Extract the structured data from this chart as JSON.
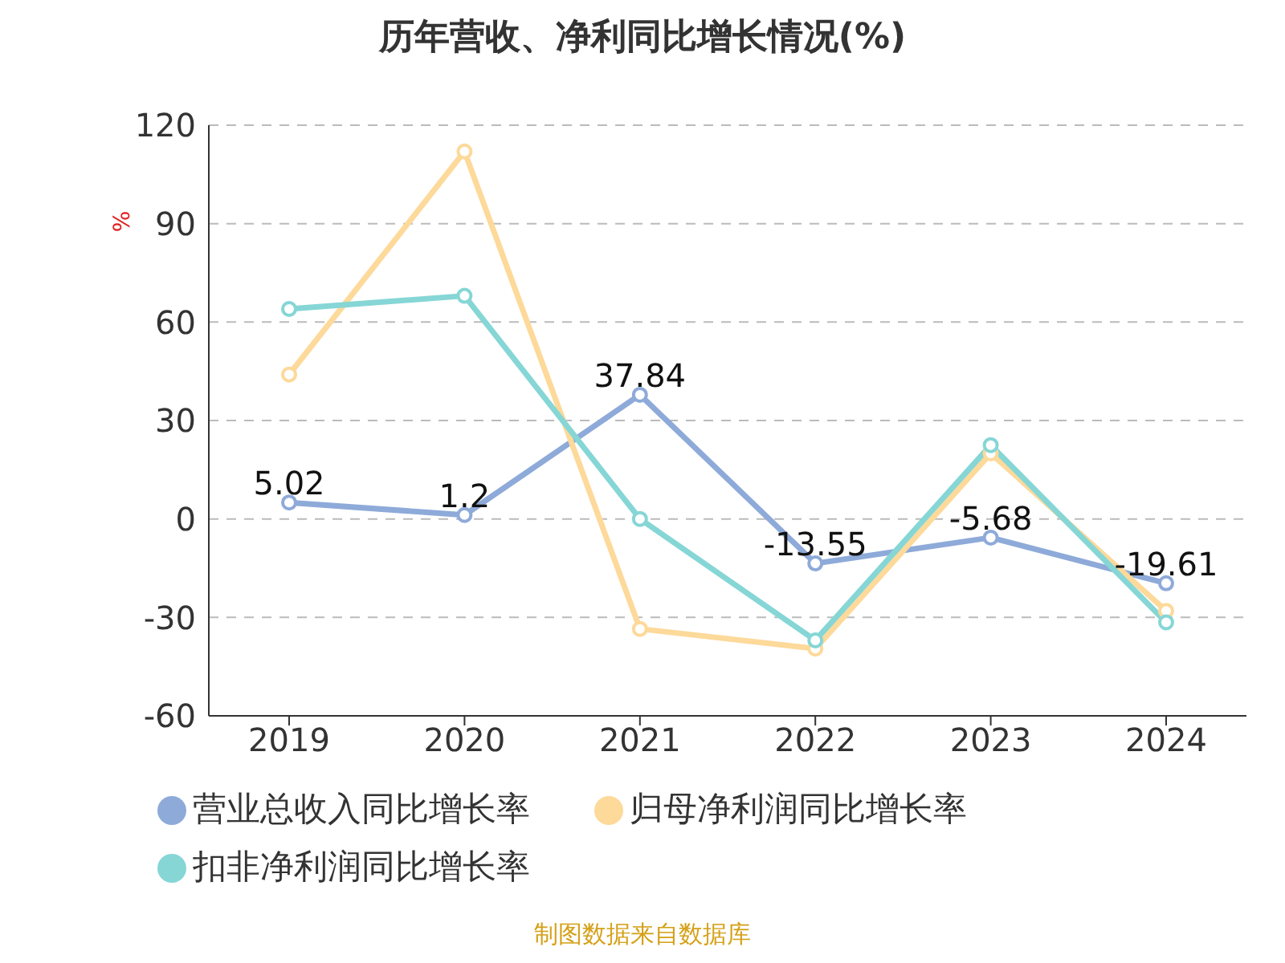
{
  "chart_data": {
    "type": "line",
    "title": "历年营收、净利同比增长情况(%)",
    "ylabel": "%",
    "categories": [
      "2019",
      "2020",
      "2021",
      "2022",
      "2023",
      "2024"
    ],
    "series": [
      {
        "name": "营业总收入同比增长率",
        "color": "#8eaad9",
        "values": [
          5.02,
          1.2,
          37.84,
          -13.55,
          -5.68,
          -19.61
        ],
        "value_labels": [
          "5.02",
          "1.2",
          "37.84",
          "-13.55",
          "-5.68",
          "-19.61"
        ]
      },
      {
        "name": "归母净利润同比增长率",
        "color": "#fdd99a",
        "values": [
          44,
          112,
          -33.5,
          -39.5,
          20,
          -28
        ]
      },
      {
        "name": "扣非净利润同比增长率",
        "color": "#86d6d6",
        "values": [
          64,
          68,
          0,
          -37,
          22.5,
          -31.5
        ]
      }
    ],
    "ylim": [
      -60,
      120
    ],
    "yticks": [
      -60,
      -30,
      0,
      30,
      60,
      90,
      120
    ],
    "grid": "y",
    "legend": "bottom",
    "marker": "circle",
    "line_style": "solid",
    "annotations": [
      "制图数据来自数据库"
    ]
  }
}
